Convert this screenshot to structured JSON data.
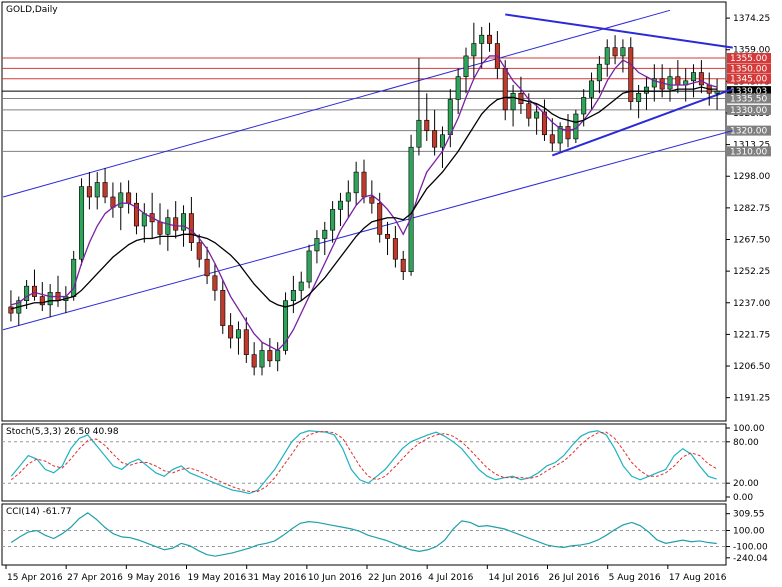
{
  "chart_data": [
    {
      "type": "candlestick",
      "title": "GOLD,Daily",
      "symbol": "GOLD",
      "timeframe": "Daily",
      "ylim": [
        1180,
        1382
      ],
      "y_ticks": [
        "1374.25",
        "1359.00",
        "1343.75",
        "1328.50",
        "1313.25",
        "1298.00",
        "1282.75",
        "1267.50",
        "1252.25",
        "1237.00",
        "1221.75",
        "1206.50",
        "1191.25"
      ],
      "x_ticks": [
        "15 Apr 2016",
        "27 Apr 2016",
        "9 May 2016",
        "19 May 2016",
        "31 May 2016",
        "10 Jun 2016",
        "22 Jun 2016",
        "4 Jul 2016",
        "14 Jul 2016",
        "26 Jul 2016",
        "5 Aug 2016",
        "17 Aug 2016"
      ],
      "levels": [
        {
          "value": "1355.00",
          "color": "#d43a3a"
        },
        {
          "value": "1350.00",
          "color": "#d43a3a"
        },
        {
          "value": "1345.00",
          "color": "#d43a3a"
        },
        {
          "value": "1339.03",
          "color": "#000000"
        },
        {
          "value": "1335.50",
          "color": "#808080"
        },
        {
          "value": "1330.00",
          "color": "#808080"
        },
        {
          "value": "1320.00",
          "color": "#808080"
        },
        {
          "value": "1310.00",
          "color": "#808080"
        }
      ],
      "candles": [
        [
          1235,
          1243,
          1228,
          1232
        ],
        [
          1232,
          1240,
          1226,
          1238
        ],
        [
          1238,
          1248,
          1234,
          1245
        ],
        [
          1245,
          1253,
          1238,
          1240
        ],
        [
          1240,
          1247,
          1233,
          1236
        ],
        [
          1236,
          1246,
          1230,
          1242
        ],
        [
          1242,
          1250,
          1235,
          1238
        ],
        [
          1238,
          1245,
          1232,
          1240
        ],
        [
          1240,
          1262,
          1238,
          1258
        ],
        [
          1258,
          1297,
          1255,
          1293
        ],
        [
          1293,
          1300,
          1282,
          1288
        ],
        [
          1288,
          1300,
          1282,
          1295
        ],
        [
          1295,
          1302,
          1285,
          1288
        ],
        [
          1288,
          1295,
          1278,
          1283
        ],
        [
          1283,
          1295,
          1272,
          1290
        ],
        [
          1290,
          1296,
          1280,
          1285
        ],
        [
          1285,
          1290,
          1270,
          1274
        ],
        [
          1274,
          1285,
          1266,
          1280
        ],
        [
          1280,
          1290,
          1268,
          1276
        ],
        [
          1276,
          1285,
          1265,
          1270
        ],
        [
          1270,
          1282,
          1262,
          1278
        ],
        [
          1278,
          1286,
          1268,
          1272
        ],
        [
          1272,
          1284,
          1264,
          1280
        ],
        [
          1280,
          1288,
          1262,
          1266
        ],
        [
          1266,
          1270,
          1254,
          1258
        ],
        [
          1258,
          1264,
          1246,
          1250
        ],
        [
          1250,
          1256,
          1238,
          1243
        ],
        [
          1243,
          1248,
          1222,
          1226
        ],
        [
          1226,
          1232,
          1215,
          1220
        ],
        [
          1220,
          1228,
          1212,
          1224
        ],
        [
          1224,
          1230,
          1208,
          1212
        ],
        [
          1212,
          1218,
          1202,
          1206
        ],
        [
          1206,
          1218,
          1202,
          1214
        ],
        [
          1214,
          1220,
          1206,
          1209
        ],
        [
          1209,
          1218,
          1204,
          1214
        ],
        [
          1214,
          1242,
          1212,
          1238
        ],
        [
          1238,
          1250,
          1232,
          1243
        ],
        [
          1243,
          1252,
          1238,
          1247
        ],
        [
          1247,
          1265,
          1244,
          1262
        ],
        [
          1262,
          1272,
          1256,
          1268
        ],
        [
          1268,
          1276,
          1260,
          1272
        ],
        [
          1272,
          1286,
          1266,
          1282
        ],
        [
          1282,
          1290,
          1274,
          1286
        ],
        [
          1286,
          1296,
          1278,
          1290
        ],
        [
          1290,
          1305,
          1284,
          1300
        ],
        [
          1300,
          1306,
          1285,
          1288
        ],
        [
          1288,
          1296,
          1280,
          1285
        ],
        [
          1285,
          1290,
          1266,
          1270
        ],
        [
          1270,
          1276,
          1260,
          1268
        ],
        [
          1268,
          1274,
          1254,
          1258
        ],
        [
          1258,
          1262,
          1248,
          1252
        ],
        [
          1252,
          1318,
          1250,
          1312
        ],
        [
          1312,
          1355,
          1308,
          1325
        ],
        [
          1325,
          1338,
          1315,
          1320
        ],
        [
          1320,
          1330,
          1308,
          1312
        ],
        [
          1312,
          1322,
          1302,
          1318
        ],
        [
          1318,
          1340,
          1312,
          1335
        ],
        [
          1335,
          1350,
          1328,
          1346
        ],
        [
          1346,
          1360,
          1338,
          1356
        ],
        [
          1356,
          1372,
          1345,
          1362
        ],
        [
          1362,
          1370,
          1350,
          1366
        ],
        [
          1366,
          1372,
          1358,
          1362
        ],
        [
          1362,
          1368,
          1345,
          1350
        ],
        [
          1350,
          1354,
          1325,
          1330
        ],
        [
          1330,
          1342,
          1322,
          1338
        ],
        [
          1338,
          1346,
          1328,
          1333
        ],
        [
          1333,
          1338,
          1322,
          1326
        ],
        [
          1326,
          1333,
          1318,
          1329
        ],
        [
          1329,
          1335,
          1315,
          1318
        ],
        [
          1318,
          1326,
          1310,
          1314
        ],
        [
          1314,
          1324,
          1310,
          1322
        ],
        [
          1322,
          1328,
          1312,
          1316
        ],
        [
          1316,
          1330,
          1314,
          1328
        ],
        [
          1328,
          1340,
          1322,
          1336
        ],
        [
          1336,
          1348,
          1330,
          1344
        ],
        [
          1344,
          1356,
          1338,
          1352
        ],
        [
          1352,
          1364,
          1346,
          1360
        ],
        [
          1360,
          1366,
          1352,
          1356
        ],
        [
          1356,
          1364,
          1348,
          1360
        ],
        [
          1360,
          1365,
          1330,
          1334
        ],
        [
          1334,
          1342,
          1326,
          1338
        ],
        [
          1338,
          1346,
          1330,
          1341
        ],
        [
          1341,
          1352,
          1334,
          1345
        ],
        [
          1345,
          1352,
          1336,
          1340
        ],
        [
          1340,
          1350,
          1334,
          1346
        ],
        [
          1346,
          1354,
          1338,
          1342
        ],
        [
          1342,
          1350,
          1334,
          1344
        ],
        [
          1344,
          1352,
          1336,
          1348
        ],
        [
          1348,
          1354,
          1338,
          1342
        ],
        [
          1342,
          1348,
          1332,
          1338
        ],
        [
          1338,
          1345,
          1330,
          1339
        ]
      ],
      "ma_purple": [
        1236,
        1237,
        1240,
        1242,
        1241,
        1240,
        1240,
        1240,
        1244,
        1256,
        1266,
        1274,
        1280,
        1283,
        1285,
        1285,
        1283,
        1280,
        1278,
        1276,
        1275,
        1274,
        1274,
        1272,
        1268,
        1263,
        1256,
        1248,
        1240,
        1234,
        1228,
        1222,
        1218,
        1216,
        1214,
        1218,
        1224,
        1232,
        1240,
        1248,
        1256,
        1264,
        1272,
        1278,
        1284,
        1288,
        1289,
        1286,
        1282,
        1277,
        1270,
        1278,
        1290,
        1300,
        1305,
        1310,
        1318,
        1326,
        1336,
        1345,
        1352,
        1356,
        1356,
        1350,
        1344,
        1340,
        1335,
        1332,
        1328,
        1324,
        1321,
        1320,
        1321,
        1325,
        1330,
        1336,
        1344,
        1350,
        1354,
        1352,
        1348,
        1346,
        1344,
        1343,
        1342,
        1342,
        1342,
        1343,
        1344,
        1342,
        1341
      ],
      "ma_black": [
        1234,
        1235,
        1236,
        1237,
        1237,
        1238,
        1238,
        1239,
        1240,
        1243,
        1247,
        1251,
        1255,
        1259,
        1262,
        1265,
        1267,
        1268,
        1268,
        1269,
        1269,
        1269,
        1270,
        1270,
        1269,
        1268,
        1266,
        1263,
        1260,
        1256,
        1251,
        1246,
        1242,
        1238,
        1236,
        1235,
        1236,
        1238,
        1241,
        1245,
        1249,
        1254,
        1259,
        1264,
        1269,
        1273,
        1276,
        1277,
        1278,
        1278,
        1277,
        1280,
        1286,
        1292,
        1296,
        1300,
        1305,
        1310,
        1316,
        1322,
        1328,
        1332,
        1335,
        1336,
        1336,
        1335,
        1334,
        1333,
        1331,
        1328,
        1326,
        1325,
        1324,
        1325,
        1327,
        1329,
        1332,
        1335,
        1338,
        1339,
        1339,
        1339,
        1339,
        1339,
        1339,
        1340,
        1340,
        1340,
        1341,
        1340,
        1340
      ]
    },
    {
      "type": "line",
      "title": "Stoch(5,3,3) 26.50 40.98",
      "ylim": [
        0,
        100
      ],
      "y_ticks": [
        "100.00",
        "80.00",
        "20.00",
        "0.00"
      ],
      "main": [
        30,
        45,
        60,
        55,
        40,
        35,
        45,
        70,
        85,
        90,
        75,
        60,
        45,
        40,
        50,
        55,
        45,
        35,
        30,
        40,
        45,
        35,
        30,
        25,
        20,
        15,
        10,
        8,
        5,
        10,
        25,
        40,
        60,
        80,
        92,
        96,
        95,
        94,
        90,
        70,
        40,
        25,
        20,
        30,
        40,
        55,
        70,
        80,
        85,
        90,
        94,
        88,
        80,
        70,
        55,
        40,
        30,
        25,
        28,
        30,
        25,
        28,
        35,
        45,
        50,
        60,
        75,
        88,
        94,
        96,
        90,
        70,
        45,
        30,
        25,
        30,
        35,
        40,
        60,
        70,
        62,
        45,
        30,
        26
      ],
      "signal": [
        25,
        35,
        48,
        55,
        52,
        45,
        42,
        55,
        70,
        82,
        84,
        75,
        62,
        50,
        46,
        50,
        50,
        45,
        38,
        35,
        40,
        42,
        38,
        32,
        26,
        20,
        15,
        11,
        8,
        8,
        15,
        28,
        45,
        62,
        80,
        90,
        94,
        95,
        93,
        85,
        65,
        45,
        30,
        25,
        30,
        42,
        55,
        68,
        78,
        85,
        90,
        92,
        88,
        80,
        68,
        55,
        42,
        33,
        28,
        28,
        28,
        27,
        30,
        38,
        45,
        52,
        63,
        76,
        86,
        93,
        94,
        85,
        68,
        50,
        38,
        30,
        30,
        35,
        45,
        58,
        64,
        60,
        48,
        41
      ]
    },
    {
      "type": "line",
      "title": "CCI(14) -61.77",
      "ylim": [
        -280,
        380
      ],
      "y_ticks": [
        "309.55",
        "100.00",
        "-100.00",
        "-240.04"
      ],
      "values": [
        -50,
        20,
        80,
        100,
        40,
        0,
        60,
        140,
        250,
        320,
        240,
        140,
        60,
        20,
        10,
        -20,
        -60,
        -100,
        -140,
        -120,
        -60,
        -90,
        -150,
        -200,
        -220,
        -200,
        -180,
        -150,
        -120,
        -80,
        -60,
        -30,
        40,
        120,
        190,
        210,
        200,
        180,
        160,
        140,
        120,
        90,
        40,
        10,
        -20,
        -60,
        -100,
        -140,
        -160,
        -140,
        -100,
        -20,
        120,
        220,
        200,
        150,
        160,
        140,
        120,
        80,
        40,
        0,
        -40,
        -80,
        -100,
        -110,
        -90,
        -80,
        -60,
        -20,
        40,
        110,
        170,
        200,
        160,
        80,
        -20,
        -60,
        -40,
        -20,
        -40,
        -30,
        -50,
        -62
      ]
    }
  ]
}
